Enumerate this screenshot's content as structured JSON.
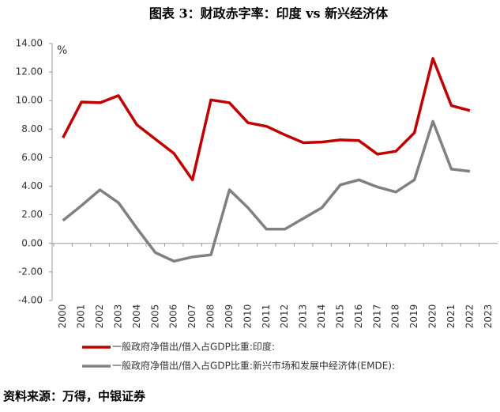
{
  "chart_data": {
    "type": "line",
    "title": "图表 3：财政赤字率：印度 vs 新兴经济体",
    "unit_label": "%",
    "source": "资料来源：万得，中银证券",
    "categories": [
      "2000",
      "2001",
      "2002",
      "2003",
      "2004",
      "2005",
      "2006",
      "2007",
      "2008",
      "2009",
      "2010",
      "2011",
      "2012",
      "2013",
      "2014",
      "2015",
      "2016",
      "2017",
      "2018",
      "2019",
      "2020",
      "2021",
      "2022",
      "2023"
    ],
    "series": [
      {
        "name": "一般政府净借出/借入占GDP比重:印度:",
        "color": "#c00000",
        "values": [
          7.4,
          9.9,
          9.85,
          10.35,
          8.3,
          7.3,
          6.3,
          4.45,
          10.05,
          9.85,
          8.45,
          8.2,
          7.6,
          7.05,
          7.1,
          7.25,
          7.2,
          6.25,
          6.45,
          7.75,
          12.95,
          9.65,
          9.3,
          null
        ]
      },
      {
        "name": "一般政府净借出/借入占GDP比重:新兴市场和发展中经济体(EMDE):",
        "color": "#808080",
        "values": [
          1.6,
          2.65,
          3.75,
          2.85,
          1.05,
          -0.65,
          -1.25,
          -0.95,
          -0.8,
          3.75,
          2.5,
          1.0,
          1.0,
          1.75,
          2.5,
          4.1,
          4.45,
          3.95,
          3.6,
          4.45,
          8.55,
          5.2,
          5.05,
          null
        ]
      }
    ],
    "ylim": [
      -4,
      14
    ],
    "yticks": [
      {
        "value": -4,
        "label": "-4.00"
      },
      {
        "value": -2,
        "label": "-2.00"
      },
      {
        "value": 0,
        "label": "0.00"
      },
      {
        "value": 2,
        "label": "2.00"
      },
      {
        "value": 4,
        "label": "4.00"
      },
      {
        "value": 6,
        "label": "6.00"
      },
      {
        "value": 8,
        "label": "8.00"
      },
      {
        "value": 10,
        "label": "10.00"
      },
      {
        "value": 12,
        "label": "12.00"
      },
      {
        "value": 14,
        "label": "14.00"
      }
    ],
    "grid": false
  }
}
